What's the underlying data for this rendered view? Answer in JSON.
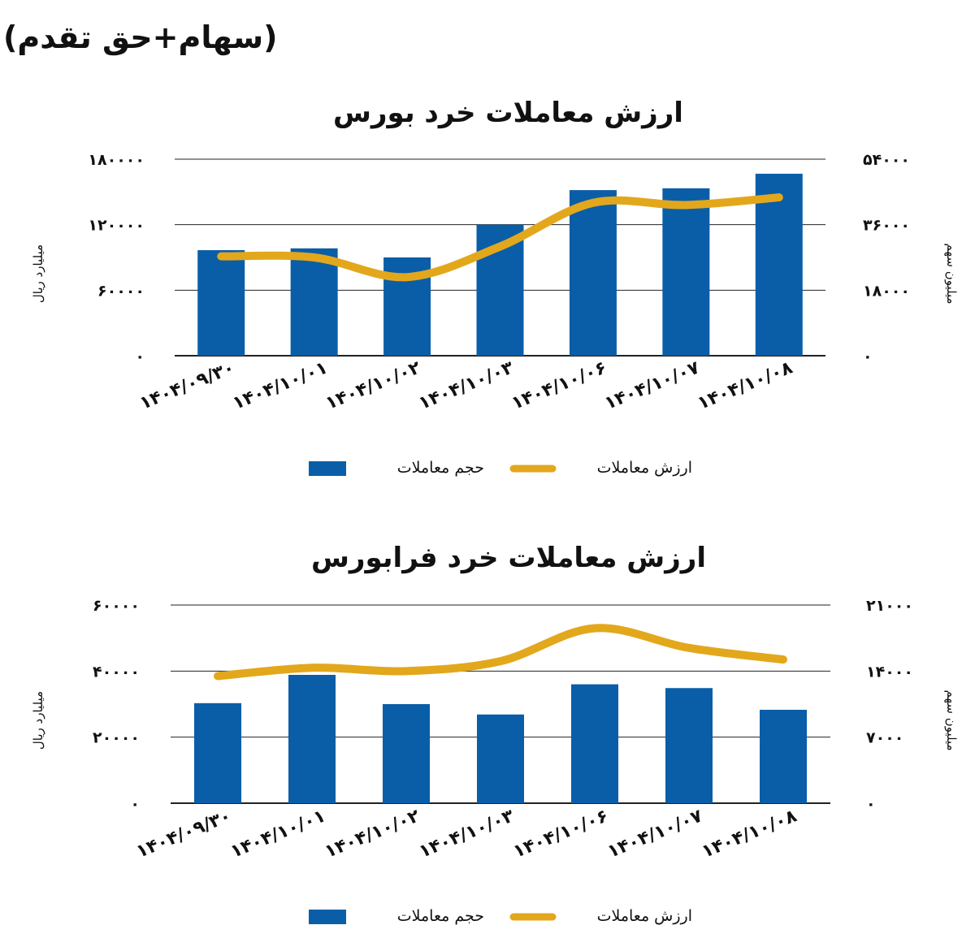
{
  "page": {
    "title": "(سهام+حق تقدم)"
  },
  "style": {
    "bar_color": "#0a5ea8",
    "line_color": "#e3a71c",
    "grid_color": "#222222"
  },
  "chart_data": [
    {
      "type": "bar",
      "title": "ارزش معاملات خرد بورس",
      "categories": [
        "1404/09/30",
        "1404/10/01",
        "1404/10/02",
        "1404/10/03",
        "1404/10/06",
        "1404/10/07",
        "1404/10/08"
      ],
      "ylabel": "میلیارد ریال",
      "y2label": "میلیون سهم",
      "ylim": [
        0,
        180000
      ],
      "y2lim": [
        0,
        54000
      ],
      "yticks": [
        "0",
        "60000",
        "120000",
        "180000"
      ],
      "y2ticks": [
        "0",
        "18000",
        "36000",
        "54000"
      ],
      "grid": true,
      "legend_position": "bottom",
      "series": [
        {
          "name": "حجم معاملات",
          "kind": "bar",
          "axis": "right",
          "values": [
            29000,
            29500,
            27000,
            36000,
            45500,
            46000,
            50000
          ]
        },
        {
          "name": "ارزش معاملات",
          "kind": "line",
          "axis": "left",
          "values": [
            91000,
            90000,
            72000,
            100000,
            140000,
            138000,
            145000
          ]
        }
      ]
    },
    {
      "type": "bar",
      "title": "ارزش معاملات خرد فرابورس",
      "categories": [
        "1404/09/30",
        "1404/10/01",
        "1404/10/02",
        "1404/10/03",
        "1404/10/06",
        "1404/10/07",
        "1404/10/08"
      ],
      "ylabel": "میلیارد ریال",
      "y2label": "میلیون سهم",
      "ylim": [
        0,
        60000
      ],
      "y2lim": [
        0,
        21000
      ],
      "yticks": [
        "0",
        "20000",
        "40000",
        "60000"
      ],
      "y2ticks": [
        "0",
        "7000",
        "14000",
        "21000"
      ],
      "grid": true,
      "legend_position": "bottom",
      "series": [
        {
          "name": "حجم معاملات",
          "kind": "bar",
          "axis": "right",
          "values": [
            10600,
            13600,
            10500,
            9400,
            12600,
            12200,
            9900
          ]
        },
        {
          "name": "ارزش معاملات",
          "kind": "line",
          "axis": "left",
          "values": [
            38500,
            41000,
            40000,
            43000,
            53000,
            47000,
            43500
          ]
        }
      ]
    }
  ]
}
